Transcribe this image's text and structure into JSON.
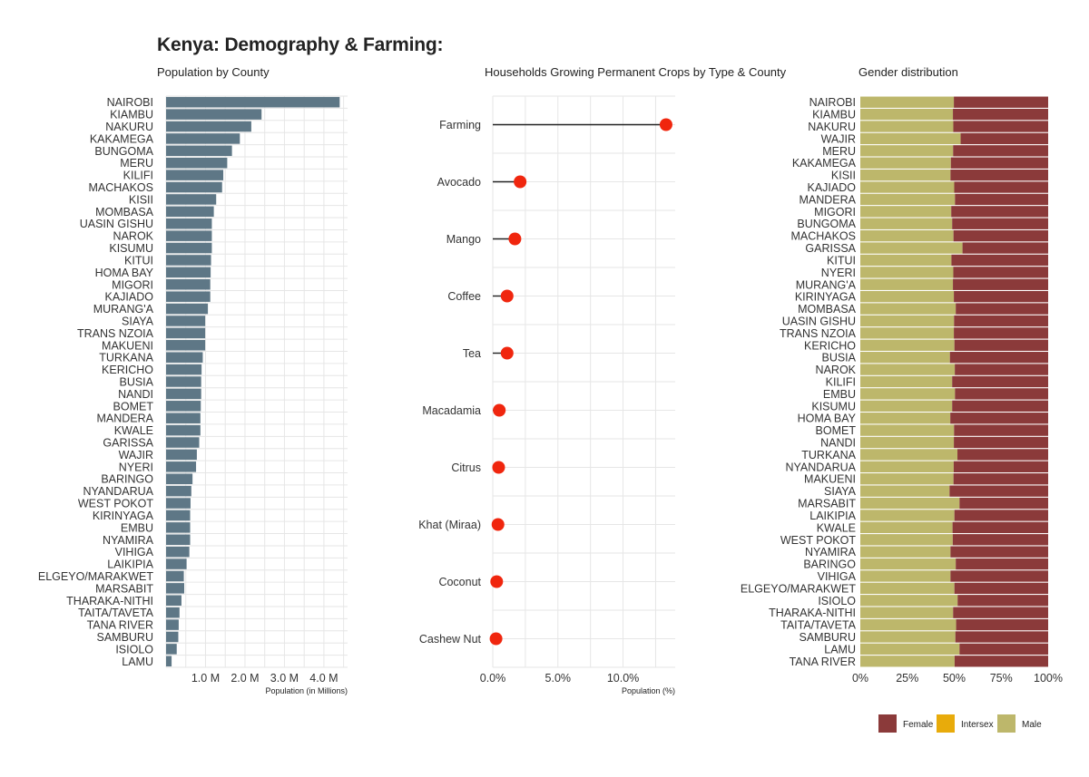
{
  "title": "Kenya: Demography & Farming:",
  "chart_data": [
    {
      "type": "bar",
      "orientation": "horizontal",
      "title": "Population by County",
      "xlabel": "Population (in Millions)",
      "ylabel": "",
      "xlim": [
        0,
        4.6
      ],
      "xticks": [
        1,
        2,
        3,
        4
      ],
      "xtick_labels": [
        "1.0 M",
        "2.0 M",
        "3.0 M",
        "4.0 M"
      ],
      "color": "#5e7786",
      "grid": true,
      "categories": [
        "NAIROBI",
        "KIAMBU",
        "NAKURU",
        "KAKAMEGA",
        "BUNGOMA",
        "MERU",
        "KILIFI",
        "MACHAKOS",
        "KISII",
        "MOMBASA",
        "UASIN GISHU",
        "NAROK",
        "KISUMU",
        "KITUI",
        "HOMA BAY",
        "MIGORI",
        "KAJIADO",
        "MURANG'A",
        "SIAYA",
        "TRANS NZOIA",
        "MAKUENI",
        "TURKANA",
        "KERICHO",
        "BUSIA",
        "NANDI",
        "BOMET",
        "MANDERA",
        "KWALE",
        "GARISSA",
        "WAJIR",
        "NYERI",
        "BARINGO",
        "NYANDARUA",
        "WEST POKOT",
        "KIRINYAGA",
        "EMBU",
        "NYAMIRA",
        "VIHIGA",
        "LAIKIPIA",
        "ELGEYO/MARAKWET",
        "MARSABIT",
        "THARAKA-NITHI",
        "TAITA/TAVETA",
        "TANA RIVER",
        "SAMBURU",
        "ISIOLO",
        "LAMU"
      ],
      "values": [
        4.4,
        2.42,
        2.16,
        1.87,
        1.67,
        1.55,
        1.45,
        1.42,
        1.27,
        1.21,
        1.16,
        1.16,
        1.16,
        1.14,
        1.13,
        1.12,
        1.12,
        1.06,
        0.99,
        0.99,
        0.99,
        0.93,
        0.9,
        0.89,
        0.89,
        0.88,
        0.87,
        0.87,
        0.84,
        0.78,
        0.76,
        0.67,
        0.64,
        0.62,
        0.61,
        0.61,
        0.61,
        0.59,
        0.52,
        0.45,
        0.46,
        0.39,
        0.34,
        0.32,
        0.31,
        0.27,
        0.14
      ]
    },
    {
      "type": "lollipop",
      "title": "Households Growing Permanent Crops by Type & County",
      "xlabel": "Population (%)",
      "ylabel": "",
      "xlim": [
        0,
        14
      ],
      "xticks": [
        0,
        5,
        10
      ],
      "xtick_labels": [
        "0.0%",
        "5.0%",
        "10.0%"
      ],
      "color": "#f0260e",
      "grid": true,
      "categories": [
        "Farming",
        "Avocado",
        "Mango",
        "Coffee",
        "Tea",
        "Macadamia",
        "Citrus",
        "Khat (Miraa)",
        "Coconut",
        "Cashew Nut"
      ],
      "values": [
        13.3,
        2.1,
        1.7,
        1.1,
        1.1,
        0.5,
        0.45,
        0.4,
        0.3,
        0.25
      ]
    },
    {
      "type": "bar",
      "orientation": "horizontal",
      "stacked": true,
      "normalized": true,
      "title": "Gender distribution",
      "xlabel": "",
      "ylabel": "",
      "xlim": [
        0,
        100
      ],
      "xticks": [
        0,
        25,
        50,
        75,
        100
      ],
      "xtick_labels": [
        "0%",
        "25%",
        "50%",
        "75%",
        "100%"
      ],
      "legend_position": "bottom-right",
      "categories": [
        "NAIROBI",
        "KIAMBU",
        "NAKURU",
        "WAJIR",
        "MERU",
        "KAKAMEGA",
        "KISII",
        "KAJIADO",
        "MANDERA",
        "MIGORI",
        "BUNGOMA",
        "MACHAKOS",
        "GARISSA",
        "KITUI",
        "NYERI",
        "MURANG'A",
        "KIRINYAGA",
        "MOMBASA",
        "UASIN GISHU",
        "TRANS NZOIA",
        "KERICHO",
        "BUSIA",
        "NAROK",
        "KILIFI",
        "EMBU",
        "KISUMU",
        "HOMA BAY",
        "BOMET",
        "NANDI",
        "TURKANA",
        "NYANDARUA",
        "MAKUENI",
        "SIAYA",
        "MARSABIT",
        "LAIKIPIA",
        "KWALE",
        "WEST POKOT",
        "NYAMIRA",
        "BARINGO",
        "VIHIGA",
        "ELGEYO/MARAKWET",
        "ISIOLO",
        "THARAKA-NITHI",
        "TAITA/TAVETA",
        "SAMBURU",
        "LAMU",
        "TANA RIVER"
      ],
      "series": [
        {
          "name": "Male",
          "color": "#bdb76b",
          "values": [
            49.8,
            49.3,
            49.5,
            53.4,
            49.4,
            48.2,
            48.0,
            50.0,
            50.4,
            48.4,
            48.9,
            49.6,
            54.4,
            48.5,
            49.5,
            49.3,
            49.8,
            50.8,
            49.9,
            49.8,
            50.1,
            47.7,
            50.3,
            48.9,
            50.4,
            48.9,
            47.9,
            49.9,
            49.8,
            51.7,
            49.7,
            49.6,
            47.5,
            52.8,
            50.1,
            49.1,
            49.2,
            48.0,
            50.8,
            48.0,
            50.1,
            51.8,
            49.4,
            51.0,
            50.6,
            52.8,
            50.2
          ]
        },
        {
          "name": "Intersex",
          "color": "#e8ab0b",
          "values": [
            0,
            0,
            0,
            0,
            0,
            0,
            0,
            0,
            0,
            0,
            0,
            0,
            0,
            0,
            0,
            0,
            0,
            0,
            0,
            0,
            0,
            0,
            0,
            0,
            0,
            0,
            0,
            0,
            0,
            0,
            0,
            0,
            0,
            0,
            0,
            0,
            0,
            0,
            0,
            0,
            0,
            0,
            0,
            0,
            0,
            0,
            0
          ]
        },
        {
          "name": "Female",
          "color": "#8b3a3a",
          "values": [
            50.2,
            50.7,
            50.5,
            46.6,
            50.6,
            51.8,
            52.0,
            50.0,
            49.6,
            51.6,
            51.1,
            50.4,
            45.6,
            51.5,
            50.5,
            50.7,
            50.2,
            49.2,
            50.1,
            50.2,
            49.9,
            52.3,
            49.7,
            51.1,
            49.6,
            51.1,
            52.1,
            50.1,
            50.2,
            48.3,
            50.3,
            50.4,
            52.5,
            47.2,
            49.9,
            50.9,
            50.8,
            52.0,
            49.2,
            52.0,
            49.9,
            48.2,
            50.6,
            49.0,
            49.4,
            47.2,
            49.8
          ]
        }
      ],
      "legend": [
        "Female",
        "Intersex",
        "Male"
      ]
    }
  ]
}
